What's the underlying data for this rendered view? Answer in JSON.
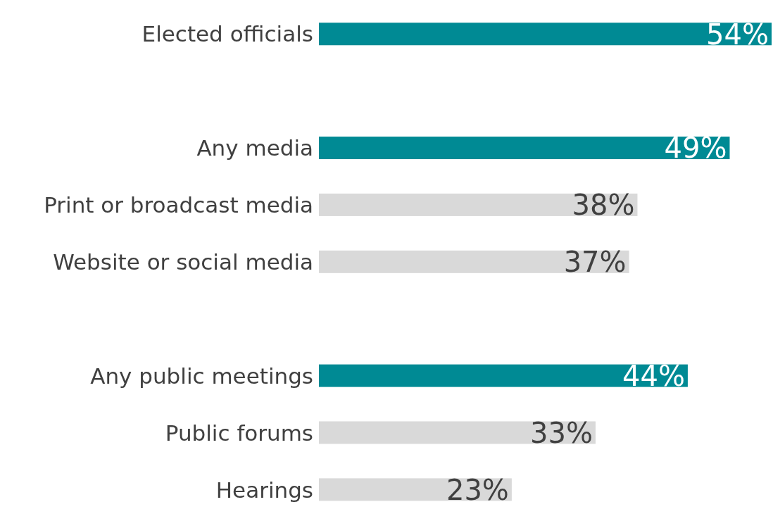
{
  "chart_data": {
    "type": "bar",
    "orientation": "horizontal",
    "categories": [
      "Elected officials",
      null,
      "Any media",
      "Print or broadcast media",
      "Website or social media",
      null,
      "Any public meetings",
      "Public forums",
      "Hearings"
    ],
    "values": [
      54,
      null,
      49,
      38,
      37,
      null,
      44,
      33,
      23
    ],
    "colors": [
      "#008a94",
      null,
      "#008a94",
      "#d9d9d9",
      "#d9d9d9",
      null,
      "#008a94",
      "#d9d9d9",
      "#d9d9d9"
    ],
    "value_labels": [
      "54%",
      null,
      "49%",
      "38%",
      "37%",
      null,
      "44%",
      "33%",
      "23%"
    ]
  }
}
